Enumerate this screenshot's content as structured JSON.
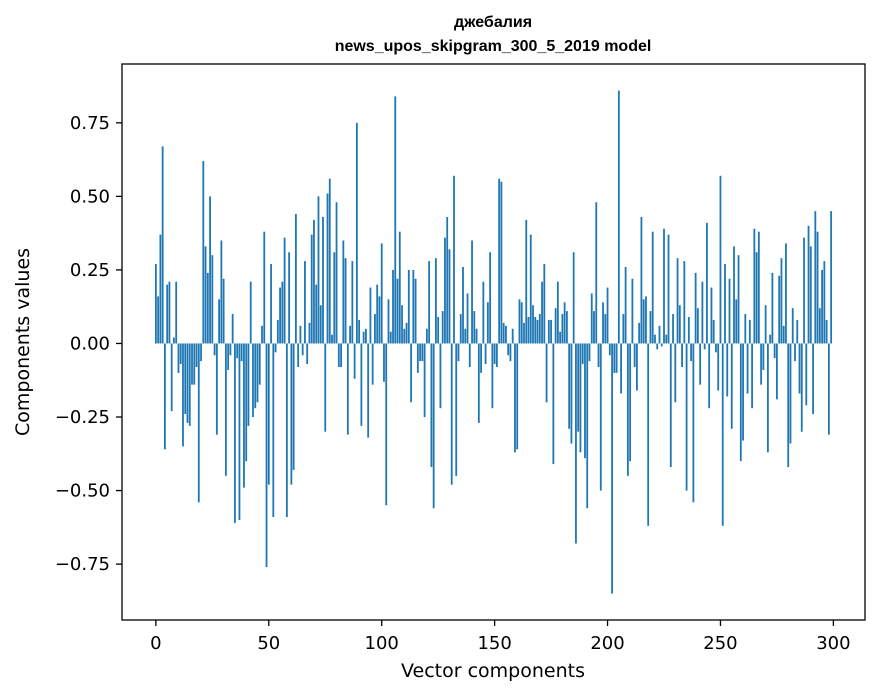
{
  "chart_data": {
    "type": "bar",
    "title_line1": "джебалия",
    "title_line2": "news_upos_skipgram_300_5_2019 model",
    "xlabel": "Vector components",
    "ylabel": "Components values",
    "xlim": [
      -15,
      314
    ],
    "ylim": [
      -0.94,
      0.95
    ],
    "xticks": [
      0,
      50,
      100,
      150,
      200,
      250,
      300
    ],
    "xtick_labels": [
      "0",
      "50",
      "100",
      "150",
      "200",
      "250",
      "300"
    ],
    "yticks": [
      -0.75,
      -0.5,
      -0.25,
      0.0,
      0.25,
      0.5,
      0.75
    ],
    "ytick_labels": [
      "−0.75",
      "−0.50",
      "−0.25",
      "0.00",
      "0.25",
      "0.50",
      "0.75"
    ],
    "bar_color": "#1f77b4",
    "values": [
      0.27,
      0.16,
      0.37,
      0.67,
      -0.36,
      0.2,
      0.21,
      -0.23,
      0.02,
      0.21,
      -0.1,
      -0.07,
      -0.35,
      -0.24,
      -0.27,
      -0.28,
      -0.14,
      -0.14,
      -0.08,
      -0.54,
      -0.06,
      0.62,
      0.33,
      0.24,
      0.5,
      0.3,
      -0.04,
      -0.31,
      0.15,
      0.35,
      0.22,
      -0.45,
      -0.09,
      -0.04,
      0.1,
      -0.61,
      -0.05,
      -0.6,
      -0.06,
      -0.49,
      -0.4,
      -0.28,
      0.21,
      -0.25,
      -0.22,
      -0.2,
      -0.14,
      0.06,
      0.38,
      -0.76,
      -0.48,
      0.27,
      -0.59,
      -0.03,
      0.08,
      0.19,
      0.21,
      0.36,
      -0.59,
      0.31,
      -0.48,
      -0.43,
      0.44,
      -0.08,
      0.06,
      -0.04,
      0.28,
      -0.07,
      0.07,
      0.37,
      0.42,
      0.2,
      0.5,
      0.13,
      0.43,
      -0.3,
      0.51,
      0.56,
      0.03,
      0.31,
      0.48,
      -0.08,
      -0.08,
      0.35,
      0.29,
      -0.31,
      0.06,
      0.28,
      -0.12,
      0.75,
      0.08,
      -0.28,
      0.04,
      0.05,
      -0.32,
      0.19,
      -0.14,
      0.1,
      0.2,
      0.16,
      0.34,
      -0.13,
      -0.55,
      0.15,
      0.04,
      0.25,
      0.84,
      0.22,
      0.38,
      0.13,
      0.05,
      0.07,
      0.25,
      -0.2,
      0.25,
      0.22,
      -0.1,
      -0.06,
      -0.06,
      -0.25,
      0.05,
      0.28,
      -0.42,
      -0.56,
      0.29,
      0.09,
      -0.22,
      0.11,
      0.36,
      0.43,
      0.32,
      -0.48,
      0.57,
      -0.45,
      -0.06,
      0.1,
      0.26,
      0.05,
      0.17,
      -0.08,
      0.35,
      0.11,
      0.05,
      -0.27,
      -0.1,
      0.21,
      -0.07,
      0.14,
      0.31,
      -0.22,
      -0.07,
      -0.08,
      0.56,
      0.55,
      0.07,
      0.06,
      -0.04,
      -0.06,
      0.05,
      -0.37,
      -0.36,
      0.15,
      0.14,
      0.07,
      0.42,
      0.09,
      0.37,
      0.13,
      0.09,
      0.08,
      0.1,
      0.21,
      0.27,
      -0.2,
      0.08,
      0.08,
      -0.41,
      0.12,
      0.21,
      0.04,
      0.1,
      0.14,
      0.11,
      -0.29,
      -0.34,
      0.31,
      -0.68,
      -0.3,
      -0.37,
      -0.07,
      -0.39,
      -0.56,
      -0.06,
      0.17,
      0.11,
      0.48,
      -0.08,
      -0.5,
      0.14,
      0.1,
      0.19,
      -0.04,
      -0.85,
      -0.1,
      -0.1,
      0.86,
      -0.17,
      0.1,
      0.26,
      -0.45,
      -0.4,
      0.22,
      -0.08,
      -0.16,
      0.07,
      0.43,
      0.15,
      0.16,
      -0.62,
      0.11,
      0.38,
      0.03,
      -0.02,
      0.06,
      -0.01,
      0.39,
      0.03,
      0.37,
      -0.42,
      0.1,
      -0.2,
      0.29,
      0.13,
      -0.08,
      0.28,
      -0.5,
      0.09,
      -0.06,
      -0.54,
      0.24,
      0.12,
      -0.14,
      0.21,
      -0.02,
      0.41,
      -0.22,
      0.19,
      0.08,
      -0.03,
      -0.16,
      0.57,
      -0.62,
      0.27,
      -0.18,
      0.22,
      -0.29,
      0.33,
      0.15,
      0.3,
      -0.4,
      -0.33,
      0.1,
      -0.17,
      0.08,
      -0.22,
      0.39,
      0.31,
      0.38,
      -0.14,
      -0.09,
      0.13,
      -0.37,
      0.03,
      0.24,
      -0.05,
      -0.19,
      0.23,
      0.29,
      0.06,
      0.34,
      -0.42,
      -0.34,
      0.12,
      -0.06,
      0.08,
      -0.17,
      -0.3,
      0.36,
      -0.21,
      0.4,
      0.33,
      -0.24,
      0.45,
      0.38,
      0.12,
      0.25,
      0.28,
      0.08,
      -0.31,
      0.45
    ]
  }
}
